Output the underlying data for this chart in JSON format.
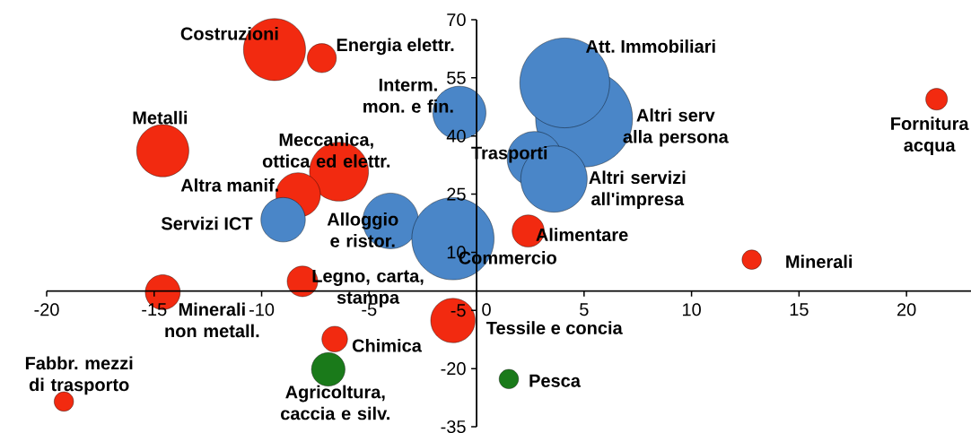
{
  "chart_data": {
    "type": "bubble",
    "xlim": [
      -20,
      23
    ],
    "ylim": [
      -35,
      70
    ],
    "xticks": [
      -20,
      -15,
      -10,
      -5,
      0,
      5,
      10,
      15,
      20
    ],
    "yticks": [
      -35,
      -20,
      -5,
      10,
      25,
      40,
      55,
      70
    ],
    "series": [
      {
        "color": "#f22a10",
        "x": [
          -9.4,
          -7.2,
          -14.6,
          -6.4,
          -8.3,
          2.4,
          12.8,
          21.4,
          -8.1,
          -14.6,
          -1.1,
          -6.6,
          -19.2
        ],
        "values": [
          62.3,
          60.1,
          36.2,
          30.8,
          24.8,
          15.5,
          8.1,
          49.5,
          2.5,
          -0.3,
          -7.6,
          -12.4,
          -28.5
        ],
        "sizes": [
          0.41,
          0.09,
          0.29,
          0.37,
          0.21,
          0.11,
          0.04,
          0.05,
          0.1,
          0.13,
          0.21,
          0.07,
          0.04
        ]
      },
      {
        "color": "#4a86c8",
        "x": [
          -9.0,
          -4.0,
          -0.8,
          5.0,
          4.1,
          2.7,
          3.6,
          -1.1
        ],
        "values": [
          18.4,
          18.1,
          46.0,
          44.5,
          53.7,
          34.1,
          28.9,
          13.5
        ],
        "sizes": [
          0.21,
          0.33,
          0.3,
          1,
          0.86,
          0.32,
          0.47,
          0.72
        ]
      },
      {
        "color": "#1a7a1a",
        "x": [
          -6.9,
          1.5
        ],
        "values": [
          -20.2,
          -22.7
        ],
        "sizes": [
          0.12,
          0.04
        ]
      }
    ],
    "annotations": [
      {
        "text": "Costruzioni",
        "x": -9.4,
        "y": 62.3
      },
      {
        "text": "Energia elettr.",
        "x": -7.2,
        "y": 60.1
      },
      {
        "text": "Metalli",
        "x": -14.6,
        "y": 36.2
      },
      {
        "text": "Meccanica, ottica ed elettr.",
        "x": -6.4,
        "y": 30.8
      },
      {
        "text": "Altra manif.",
        "x": -8.3,
        "y": 24.8
      },
      {
        "text": "Alimentare",
        "x": 2.4,
        "y": 15.5
      },
      {
        "text": "Minerali",
        "x": 12.8,
        "y": 8.1
      },
      {
        "text": "Fornitura acqua",
        "x": 21.4,
        "y": 49.5
      },
      {
        "text": "Legno, carta, stampa",
        "x": -8.1,
        "y": 2.5
      },
      {
        "text": "Minerali non metall.",
        "x": -14.6,
        "y": -0.3
      },
      {
        "text": "Tessile e concia",
        "x": -1.1,
        "y": -7.6
      },
      {
        "text": "Chimica",
        "x": -6.6,
        "y": -12.4
      },
      {
        "text": "Fabbr. mezzi di trasporto",
        "x": -19.2,
        "y": -28.5
      },
      {
        "text": "Servizi ICT",
        "x": -9.0,
        "y": 18.4
      },
      {
        "text": "Alloggio e ristor.",
        "x": -4.0,
        "y": 18.1
      },
      {
        "text": "Interm. mon. e fin.",
        "x": -0.8,
        "y": 46.0
      },
      {
        "text": "Altri serv alla persona",
        "x": 5.0,
        "y": 44.5
      },
      {
        "text": "Att. Immobiliari",
        "x": 4.1,
        "y": 53.7
      },
      {
        "text": "Trasporti",
        "x": 2.7,
        "y": 34.1
      },
      {
        "text": "Altri servizi all'impresa",
        "x": 3.6,
        "y": 28.9
      },
      {
        "text": "Commercio",
        "x": -1.1,
        "y": 13.5
      },
      {
        "text": "Agricoltura, caccia e silv.",
        "x": -6.9,
        "y": -20.2
      },
      {
        "text": "Pesca",
        "x": 1.5,
        "y": -22.7
      }
    ]
  }
}
